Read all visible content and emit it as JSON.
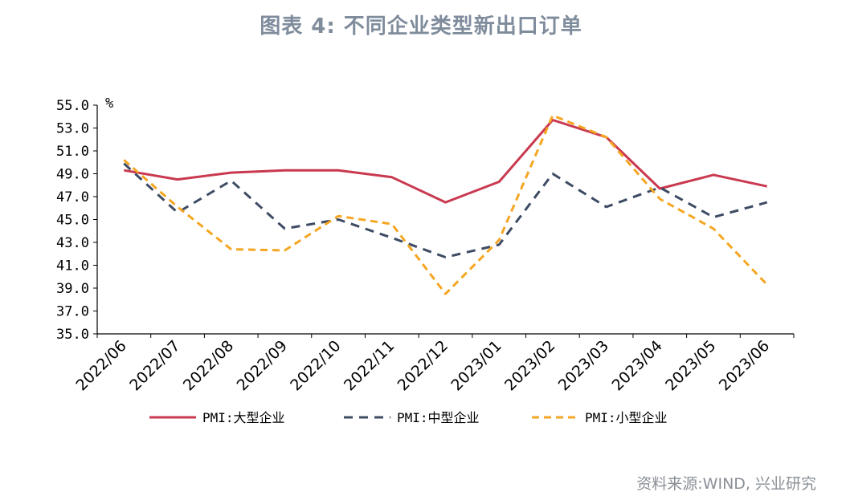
{
  "title": "图表 4:  不同企业类型新出口订单",
  "source": "资料来源:WIND, 兴业研究",
  "colors": {
    "large": "#c9394f",
    "medium": "#3d4b63",
    "small": "#f5a623"
  },
  "chart_data": {
    "type": "line",
    "unit": "%",
    "ylim": [
      35.0,
      55.0
    ],
    "yticks": [
      "35.0",
      "37.0",
      "39.0",
      "41.0",
      "43.0",
      "45.0",
      "47.0",
      "49.0",
      "51.0",
      "53.0",
      "55.0"
    ],
    "categories": [
      "2022/06",
      "2022/07",
      "2022/08",
      "2022/09",
      "2022/10",
      "2022/11",
      "2022/12",
      "2023/01",
      "2023/02",
      "2023/03",
      "2023/04",
      "2023/05",
      "2023/06"
    ],
    "series": [
      {
        "name": "PMI:大型企业",
        "style": "solid",
        "color": "#c9394f",
        "values": [
          49.3,
          48.5,
          49.1,
          49.3,
          49.3,
          48.7,
          46.5,
          48.3,
          53.7,
          52.2,
          47.7,
          48.9,
          47.9
        ]
      },
      {
        "name": "PMI:中型企业",
        "style": "dashed",
        "color": "#3d4b63",
        "values": [
          49.9,
          45.6,
          48.4,
          44.2,
          45.0,
          43.4,
          41.7,
          42.8,
          49.0,
          46.1,
          47.8,
          45.2,
          46.5
        ]
      },
      {
        "name": "PMI:小型企业",
        "style": "dashed",
        "color": "#f5a623",
        "values": [
          50.2,
          46.1,
          42.4,
          42.3,
          45.3,
          44.6,
          38.5,
          43.2,
          54.1,
          52.2,
          46.8,
          44.2,
          39.3
        ]
      }
    ],
    "legend_position": "bottom",
    "grid": false
  }
}
